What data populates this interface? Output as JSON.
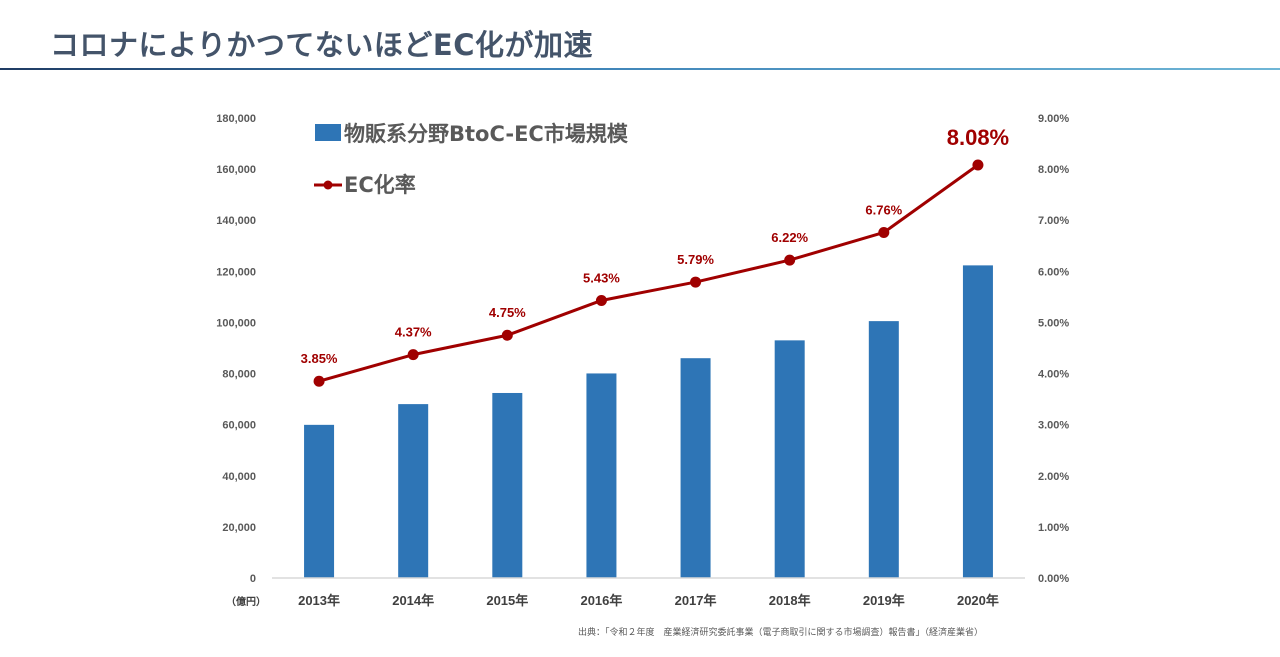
{
  "page": {
    "title": "コロナによりかつてないほどEC化が加速",
    "source": "出典：「令和２年度　産業経済研究委託事業（電子商取引に関する市場調査）報告書」（経済産業省）"
  },
  "chart_data": {
    "type": "bar",
    "title": "",
    "categories": [
      "2013年",
      "2014年",
      "2015年",
      "2016年",
      "2017年",
      "2018年",
      "2019年",
      "2020年"
    ],
    "unit_label": "（億円）",
    "series": [
      {
        "name": "物販系分野BtoC-EC市場規模",
        "type": "bar",
        "axis": "left",
        "color": "#2e75b6",
        "values": [
          59931,
          68043,
          72398,
          80043,
          86008,
          92992,
          100515,
          122333
        ]
      },
      {
        "name": "EC化率",
        "type": "line",
        "axis": "right",
        "color": "#a00000",
        "values": [
          3.85,
          4.37,
          4.75,
          5.43,
          5.79,
          6.22,
          6.76,
          8.08
        ],
        "labels": [
          "3.85%",
          "4.37%",
          "4.75%",
          "5.43%",
          "5.79%",
          "6.22%",
          "6.76%",
          "8.08%"
        ]
      }
    ],
    "y_left": {
      "ylim": [
        0,
        180000
      ],
      "ticks": [
        0,
        20000,
        40000,
        60000,
        80000,
        100000,
        120000,
        140000,
        160000,
        180000
      ],
      "tick_labels": [
        "0",
        "20,000",
        "40,000",
        "60,000",
        "80,000",
        "100,000",
        "120,000",
        "140,000",
        "160,000",
        "180,000"
      ]
    },
    "y_right": {
      "ylim": [
        0,
        9
      ],
      "ticks": [
        0,
        1,
        2,
        3,
        4,
        5,
        6,
        7,
        8,
        9
      ],
      "tick_labels": [
        "0.00%",
        "1.00%",
        "2.00%",
        "3.00%",
        "4.00%",
        "5.00%",
        "6.00%",
        "7.00%",
        "8.00%",
        "9.00%"
      ]
    },
    "grid": false,
    "legend_position": "top-left"
  }
}
